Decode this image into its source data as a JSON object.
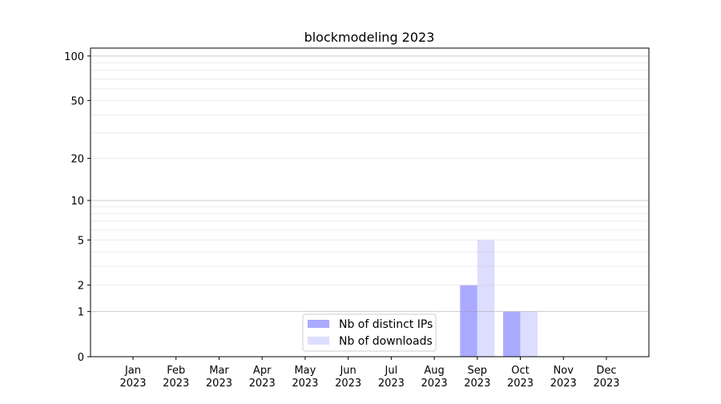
{
  "chart_data": {
    "type": "bar",
    "title": "blockmodeling 2023",
    "xlabel": "",
    "ylabel": "",
    "yscale": "symlog",
    "ylim": [
      0,
      113
    ],
    "yticks": [
      0,
      1,
      2,
      5,
      10,
      20,
      50,
      100
    ],
    "grid": true,
    "legend": "bottom-center",
    "categories": [
      [
        "Jan",
        "2023"
      ],
      [
        "Feb",
        "2023"
      ],
      [
        "Mar",
        "2023"
      ],
      [
        "Apr",
        "2023"
      ],
      [
        "May",
        "2023"
      ],
      [
        "Jun",
        "2023"
      ],
      [
        "Jul",
        "2023"
      ],
      [
        "Aug",
        "2023"
      ],
      [
        "Sep",
        "2023"
      ],
      [
        "Oct",
        "2023"
      ],
      [
        "Nov",
        "2023"
      ],
      [
        "Dec",
        "2023"
      ]
    ],
    "series": [
      {
        "name": "Nb of distinct IPs",
        "color": "#aaaaff",
        "values": [
          0,
          0,
          0,
          0,
          0,
          0,
          0,
          0,
          2,
          1,
          0,
          0
        ]
      },
      {
        "name": "Nb of downloads",
        "color": "#ddddff",
        "values": [
          0,
          0,
          0,
          0,
          0,
          0,
          0,
          0,
          5,
          1,
          0,
          0
        ]
      }
    ]
  }
}
